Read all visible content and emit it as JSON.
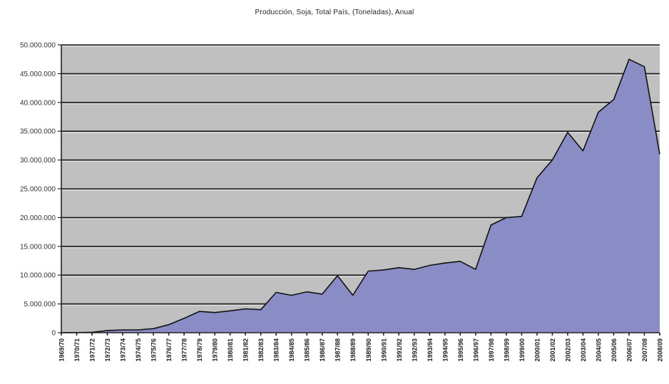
{
  "chart_data": {
    "type": "area",
    "title": "Producción, Soja, Total País, (Toneladas), Anual",
    "xlabel": "",
    "ylabel": "",
    "ylim": [
      0,
      50000000
    ],
    "grid": true,
    "legend": null,
    "y_ticks": [
      0,
      5000000,
      10000000,
      15000000,
      20000000,
      25000000,
      30000000,
      35000000,
      40000000,
      45000000,
      50000000
    ],
    "y_tick_labels": [
      "0",
      "5.000.000",
      "10.000.000",
      "15.000.000",
      "20.000.000",
      "25.000.000",
      "30.000.000",
      "35.000.000",
      "40.000.000",
      "45.000.000",
      "50.000.000"
    ],
    "categories": [
      "1969/70",
      "1970/71",
      "1971/72",
      "1972/73",
      "1973/74",
      "1974/75",
      "1975/76",
      "1976/77",
      "1977/78",
      "1978/79",
      "1979/80",
      "1980/81",
      "1981/82",
      "1982/83",
      "1983/84",
      "1984/85",
      "1985/86",
      "1986/87",
      "1987/88",
      "1988/89",
      "1989/90",
      "1990/91",
      "1991/92",
      "1992/93",
      "1993/94",
      "1994/95",
      "1995/96",
      "1996/97",
      "1997/98",
      "1998/99",
      "1999/00",
      "2000/01",
      "2001/02",
      "2002/03",
      "2003/04",
      "2004/05",
      "2005/06",
      "2006/07",
      "2007/08",
      "2008/09"
    ],
    "series": [
      {
        "name": "Producción Soja (Toneladas)",
        "color": "#8a8cc6",
        "values": [
          30000,
          30000,
          80000,
          380000,
          500000,
          490000,
          700000,
          1400000,
          2500000,
          3700000,
          3500000,
          3800000,
          4150000,
          4000000,
          7000000,
          6500000,
          7100000,
          6700000,
          9900000,
          6500000,
          10700000,
          10900000,
          11300000,
          11000000,
          11700000,
          12100000,
          12400000,
          11000000,
          18700000,
          20000000,
          20200000,
          26900000,
          30000000,
          34800000,
          31600000,
          38300000,
          40500000,
          47500000,
          46200000,
          31000000
        ]
      }
    ],
    "colors": {
      "plot_background": "#c0c0c0",
      "area_fill": "#8a8cc6",
      "gridline": "#1a1a1a",
      "outline": "#111111"
    }
  }
}
